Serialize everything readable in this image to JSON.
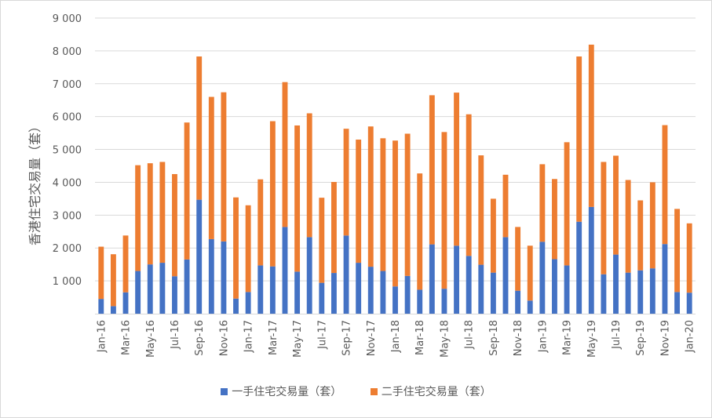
{
  "chart_data": {
    "type": "bar",
    "stacked": true,
    "ylabel": "香港住宅交易量（套）",
    "ylim": [
      0,
      9000
    ],
    "yticks": [
      0,
      1000,
      2000,
      3000,
      4000,
      5000,
      6000,
      7000,
      8000,
      9000
    ],
    "ytick_labels": [
      "",
      "1 000",
      "2 000",
      "3 000",
      "4 000",
      "5 000",
      "6 000",
      "7 000",
      "8 000",
      "9 000"
    ],
    "grid": true,
    "legend_position": "bottom",
    "categories": [
      "Jan-16",
      "Feb-16",
      "Mar-16",
      "Apr-16",
      "May-16",
      "Jun-16",
      "Jul-16",
      "Aug-16",
      "Sep-16",
      "Oct-16",
      "Nov-16",
      "Dec-16",
      "Jan-17",
      "Feb-17",
      "Mar-17",
      "Apr-17",
      "May-17",
      "Jun-17",
      "Jul-17",
      "Aug-17",
      "Sep-17",
      "Oct-17",
      "Nov-17",
      "Dec-17",
      "Jan-18",
      "Feb-18",
      "Mar-18",
      "Apr-18",
      "May-18",
      "Jun-18",
      "Jul-18",
      "Aug-18",
      "Sep-18",
      "Oct-18",
      "Nov-18",
      "Dec-18",
      "Jan-19",
      "Feb-19",
      "Mar-19",
      "Apr-19",
      "May-19",
      "Jun-19",
      "Jul-19",
      "Aug-19",
      "Sep-19",
      "Oct-19",
      "Nov-19",
      "Dec-19",
      "Jan-20"
    ],
    "xtick_labels": [
      "Jan-16",
      "",
      "Mar-16",
      "",
      "May-16",
      "",
      "Jul-16",
      "",
      "Sep-16",
      "",
      "Nov-16",
      "",
      "Jan-17",
      "",
      "Mar-17",
      "",
      "May-17",
      "",
      "Jul-17",
      "",
      "Sep-17",
      "",
      "Nov-17",
      "",
      "Jan-18",
      "",
      "Mar-18",
      "",
      "May-18",
      "",
      "Jul-18",
      "",
      "Sep-18",
      "",
      "Nov-18",
      "",
      "Jan-19",
      "",
      "Mar-19",
      "",
      "May-19",
      "",
      "Jul-19",
      "",
      "Sep-19",
      "",
      "Nov-19",
      "",
      "Jan-20"
    ],
    "series": [
      {
        "name": "一手住宅交易量（套）",
        "color": "#4472c4",
        "values": [
          450,
          230,
          650,
          1300,
          1500,
          1550,
          1140,
          1650,
          3470,
          2270,
          2200,
          460,
          660,
          1470,
          1440,
          2640,
          1280,
          2330,
          940,
          1240,
          2380,
          1550,
          1430,
          1300,
          830,
          1150,
          730,
          2110,
          760,
          2070,
          1760,
          1490,
          1250,
          2330,
          700,
          400,
          2190,
          1660,
          1470,
          2800,
          3250,
          1200,
          1800,
          1250,
          1320,
          1380,
          2120,
          660,
          640
        ]
      },
      {
        "name": "二手住宅交易量（套）",
        "color": "#ed7d31",
        "values": [
          1590,
          1580,
          1730,
          3220,
          3080,
          3070,
          3110,
          4170,
          4360,
          4330,
          4540,
          3080,
          2640,
          2620,
          4420,
          4410,
          4450,
          3770,
          2590,
          2770,
          3250,
          3750,
          4270,
          4040,
          4440,
          4330,
          3540,
          4540,
          4770,
          4660,
          4310,
          3330,
          2250,
          1900,
          1940,
          1670,
          2360,
          2440,
          3750,
          5030,
          4940,
          3420,
          3010,
          2820,
          2130,
          2620,
          3620,
          2530,
          2110
        ]
      }
    ]
  }
}
